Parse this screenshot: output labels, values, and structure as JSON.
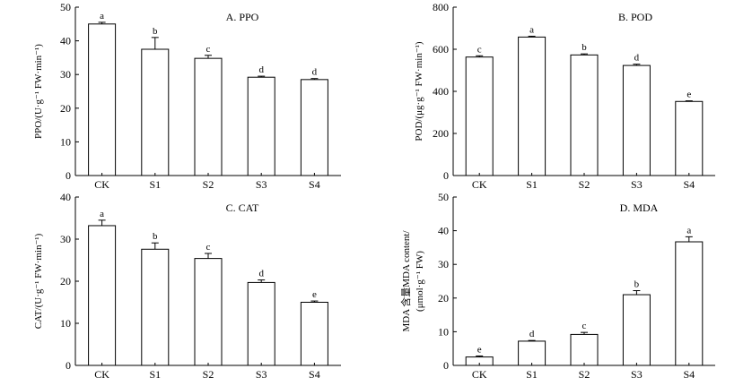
{
  "chart_data": [
    {
      "type": "bar",
      "title": "A. PPO",
      "ylabel_lines": [
        "PPO/(U·g⁻¹ FW·min⁻¹)"
      ],
      "categories": [
        "CK",
        "S1",
        "S2",
        "S3",
        "S4"
      ],
      "values": [
        45.0,
        37.5,
        34.8,
        29.2,
        28.5
      ],
      "errors": [
        0.5,
        3.5,
        0.9,
        0.3,
        0.3
      ],
      "significance": [
        "a",
        "b",
        "c",
        "d",
        "d"
      ],
      "ylim": [
        0,
        50
      ],
      "yticks": [
        "0",
        "10",
        "20",
        "30",
        "40",
        "50"
      ],
      "bar_color": "#ffffff",
      "grid": false
    },
    {
      "type": "bar",
      "title": "B. POD",
      "ylabel_lines": [
        "POD/(μg·g⁻¹ FW·min⁻¹)"
      ],
      "categories": [
        "CK",
        "S1",
        "S2",
        "S3",
        "S4"
      ],
      "values": [
        563,
        658,
        573,
        523,
        352
      ],
      "errors": [
        6,
        4,
        5,
        6,
        3
      ],
      "significance": [
        "c",
        "a",
        "b",
        "d",
        "e"
      ],
      "ylim": [
        0,
        800
      ],
      "yticks": [
        "0",
        "200",
        "400",
        "600",
        "800"
      ],
      "bar_color": "#ffffff",
      "grid": false
    },
    {
      "type": "bar",
      "title": "C. CAT",
      "ylabel_lines": [
        "CAT/(U·g⁻¹ FW·min⁻¹)"
      ],
      "categories": [
        "CK",
        "S1",
        "S2",
        "S3",
        "S4"
      ],
      "values": [
        33.2,
        27.6,
        25.4,
        19.7,
        15.0
      ],
      "errors": [
        1.3,
        1.5,
        1.2,
        0.6,
        0.3
      ],
      "significance": [
        "a",
        "b",
        "c",
        "d",
        "e"
      ],
      "ylim": [
        0,
        40
      ],
      "yticks": [
        "0",
        "10",
        "20",
        "30",
        "40"
      ],
      "bar_color": "#ffffff",
      "grid": false
    },
    {
      "type": "bar",
      "title": "D. MDA",
      "ylabel_lines": [
        "MDA 含量MDA content/",
        "(μmol·g⁻¹ FW)"
      ],
      "categories": [
        "CK",
        "S1",
        "S2",
        "S3",
        "S4"
      ],
      "values": [
        2.5,
        7.2,
        9.2,
        21.0,
        36.7
      ],
      "errors": [
        0.3,
        0.2,
        0.6,
        1.2,
        1.5
      ],
      "significance": [
        "e",
        "d",
        "c",
        "b",
        "a"
      ],
      "ylim": [
        0,
        50
      ],
      "yticks": [
        "0",
        "10",
        "20",
        "30",
        "40",
        "50"
      ],
      "bar_color": "#ffffff",
      "grid": false
    }
  ]
}
